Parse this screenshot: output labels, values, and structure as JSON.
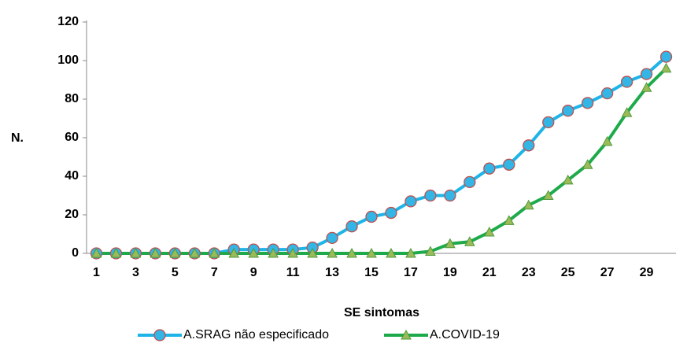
{
  "chart_data": {
    "type": "line",
    "x_label": "SE sintomas",
    "y_label": "N.",
    "categories": [
      1,
      null,
      3,
      null,
      5,
      null,
      7,
      null,
      9,
      null,
      11,
      null,
      13,
      null,
      15,
      null,
      17,
      null,
      19,
      null,
      21,
      null,
      23,
      null,
      25,
      null,
      27,
      null,
      29,
      null
    ],
    "series": [
      {
        "name": "A.SRAG não especificado",
        "color": "#1fb4e8",
        "marker": "circle",
        "marker_fill": "#33b5e5",
        "marker_edge": "#c0504d",
        "values": [
          0,
          0,
          0,
          0,
          0,
          0,
          0,
          2,
          2,
          2,
          2,
          3,
          8,
          14,
          19,
          21,
          27,
          30,
          30,
          37,
          44,
          46,
          56,
          68,
          74,
          78,
          83,
          89,
          93,
          102
        ]
      },
      {
        "name": "A.COVID-19",
        "color": "#1eaa4b",
        "marker": "triangle",
        "marker_fill": "#9bbb59",
        "marker_edge": "#4e9a3a",
        "values": [
          0,
          0,
          0,
          0,
          0,
          0,
          0,
          0,
          0,
          0,
          0,
          0,
          0,
          0,
          0,
          0,
          0,
          1,
          5,
          6,
          11,
          17,
          25,
          30,
          38,
          46,
          58,
          73,
          86,
          96
        ]
      }
    ],
    "ylim": [
      0,
      120
    ],
    "yticks": [
      0,
      20,
      40,
      60,
      80,
      100,
      120
    ],
    "grid": false
  }
}
